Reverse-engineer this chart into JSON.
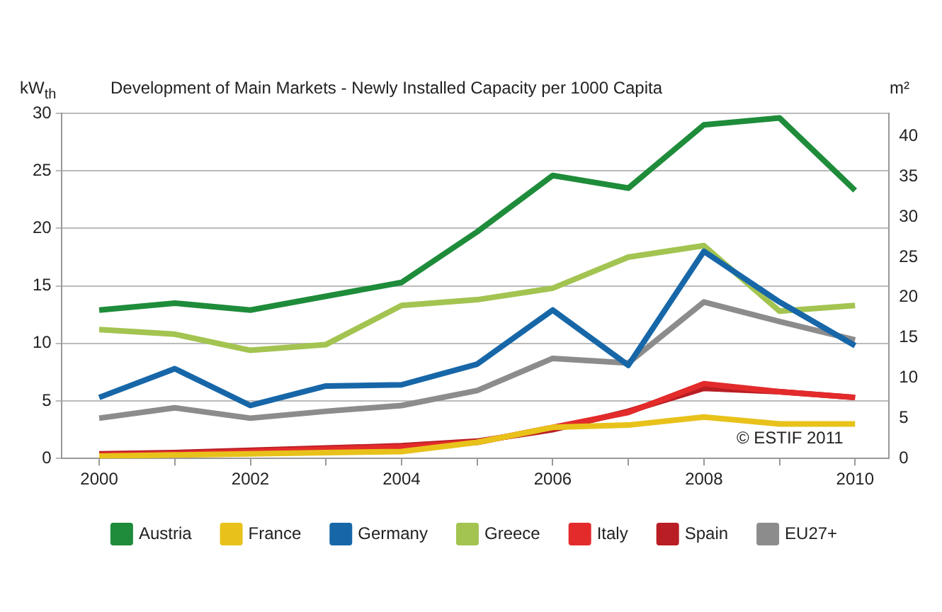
{
  "chart_data": {
    "type": "line",
    "title": "Development of Main Markets - Newly Installed Capacity per 1000 Capita",
    "ylabel": "kW$_{th}$",
    "y2label": "m²",
    "x": [
      2000,
      2001,
      2002,
      2003,
      2004,
      2005,
      2006,
      2007,
      2008,
      2009,
      2010
    ],
    "series": [
      {
        "name": "Austria",
        "color": "#1e8c3a",
        "values": [
          12.9,
          13.5,
          12.9,
          14.1,
          15.3,
          19.7,
          24.6,
          23.5,
          29.0,
          29.6,
          23.3
        ]
      },
      {
        "name": "France",
        "color": "#e8c21a",
        "values": [
          0.2,
          0.3,
          0.4,
          0.5,
          0.6,
          1.4,
          2.7,
          2.9,
          3.6,
          3.0,
          3.0
        ]
      },
      {
        "name": "Germany",
        "color": "#1767a8",
        "values": [
          5.3,
          7.8,
          4.6,
          6.3,
          6.4,
          8.2,
          12.9,
          8.1,
          18.0,
          13.6,
          9.8
        ]
      },
      {
        "name": "Greece",
        "color": "#a3c451",
        "values": [
          11.2,
          10.8,
          9.4,
          9.9,
          13.3,
          13.8,
          14.8,
          17.5,
          18.5,
          12.8,
          13.3
        ]
      },
      {
        "name": "Italy",
        "color": "#e32b2b",
        "values": [
          0.3,
          0.4,
          0.6,
          0.8,
          1.0,
          1.4,
          2.7,
          4.0,
          6.5,
          5.8,
          5.3
        ]
      },
      {
        "name": "Spain",
        "color": "#b81e24",
        "values": [
          0.4,
          0.5,
          0.7,
          0.9,
          1.1,
          1.5,
          2.5,
          4.1,
          6.1,
          5.8,
          5.3
        ]
      },
      {
        "name": "EU27+",
        "color": "#8c8c8c",
        "values": [
          3.5,
          4.4,
          3.5,
          4.1,
          4.6,
          5.9,
          8.7,
          8.3,
          13.6,
          11.9,
          10.3
        ]
      }
    ],
    "xlim": [
      1999.5,
      2010.45
    ],
    "xticks": [
      {
        "value": 2000,
        "label": "2000"
      },
      {
        "value": 2001,
        "label": null
      },
      {
        "value": 2002,
        "label": "2002"
      },
      {
        "value": 2003,
        "label": null
      },
      {
        "value": 2004,
        "label": "2004"
      },
      {
        "value": 2005,
        "label": null
      },
      {
        "value": 2006,
        "label": "2006"
      },
      {
        "value": 2007,
        "label": null
      },
      {
        "value": 2008,
        "label": "2008"
      },
      {
        "value": 2009,
        "label": null
      },
      {
        "value": 2010,
        "label": "2010"
      }
    ],
    "ylim": [
      0,
      30
    ],
    "yticks": [
      0,
      5,
      10,
      15,
      20,
      25,
      30
    ],
    "y2lim": [
      0,
      42.86
    ],
    "y2ticks": [
      0,
      5,
      10,
      15,
      20,
      25,
      30,
      35,
      40
    ],
    "annotations": [
      "© ESTIF 2011"
    ],
    "grid": "y",
    "legend": "bottom",
    "marker": "none",
    "line_style": "solid"
  }
}
